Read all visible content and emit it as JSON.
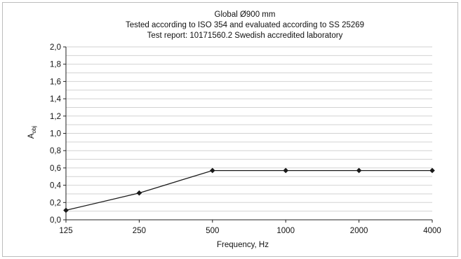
{
  "chart_data": {
    "type": "line",
    "title_lines": [
      "Global Ø900 mm",
      "Tested according to ISO 354 and evaluated according to SS 25269",
      "Test report: 10171560.2 Swedish accredited laboratory"
    ],
    "xlabel": "Frequency, Hz",
    "ylabel_base": "A",
    "ylabel_sub": "obj",
    "categories": [
      "125",
      "250",
      "500",
      "1000",
      "2000",
      "4000"
    ],
    "y_ticks": [
      "0,0",
      "0,2",
      "0,4",
      "0,6",
      "0,8",
      "1,0",
      "1,2",
      "1,4",
      "1,6",
      "1,8",
      "2,0"
    ],
    "ylim": [
      0,
      2.0
    ],
    "y_step": 0.1,
    "grid": true,
    "series": [
      {
        "values": [
          0.11,
          0.31,
          0.57,
          0.57,
          0.57,
          0.57
        ],
        "color": "#1a1a1a",
        "marker": "diamond"
      }
    ]
  }
}
